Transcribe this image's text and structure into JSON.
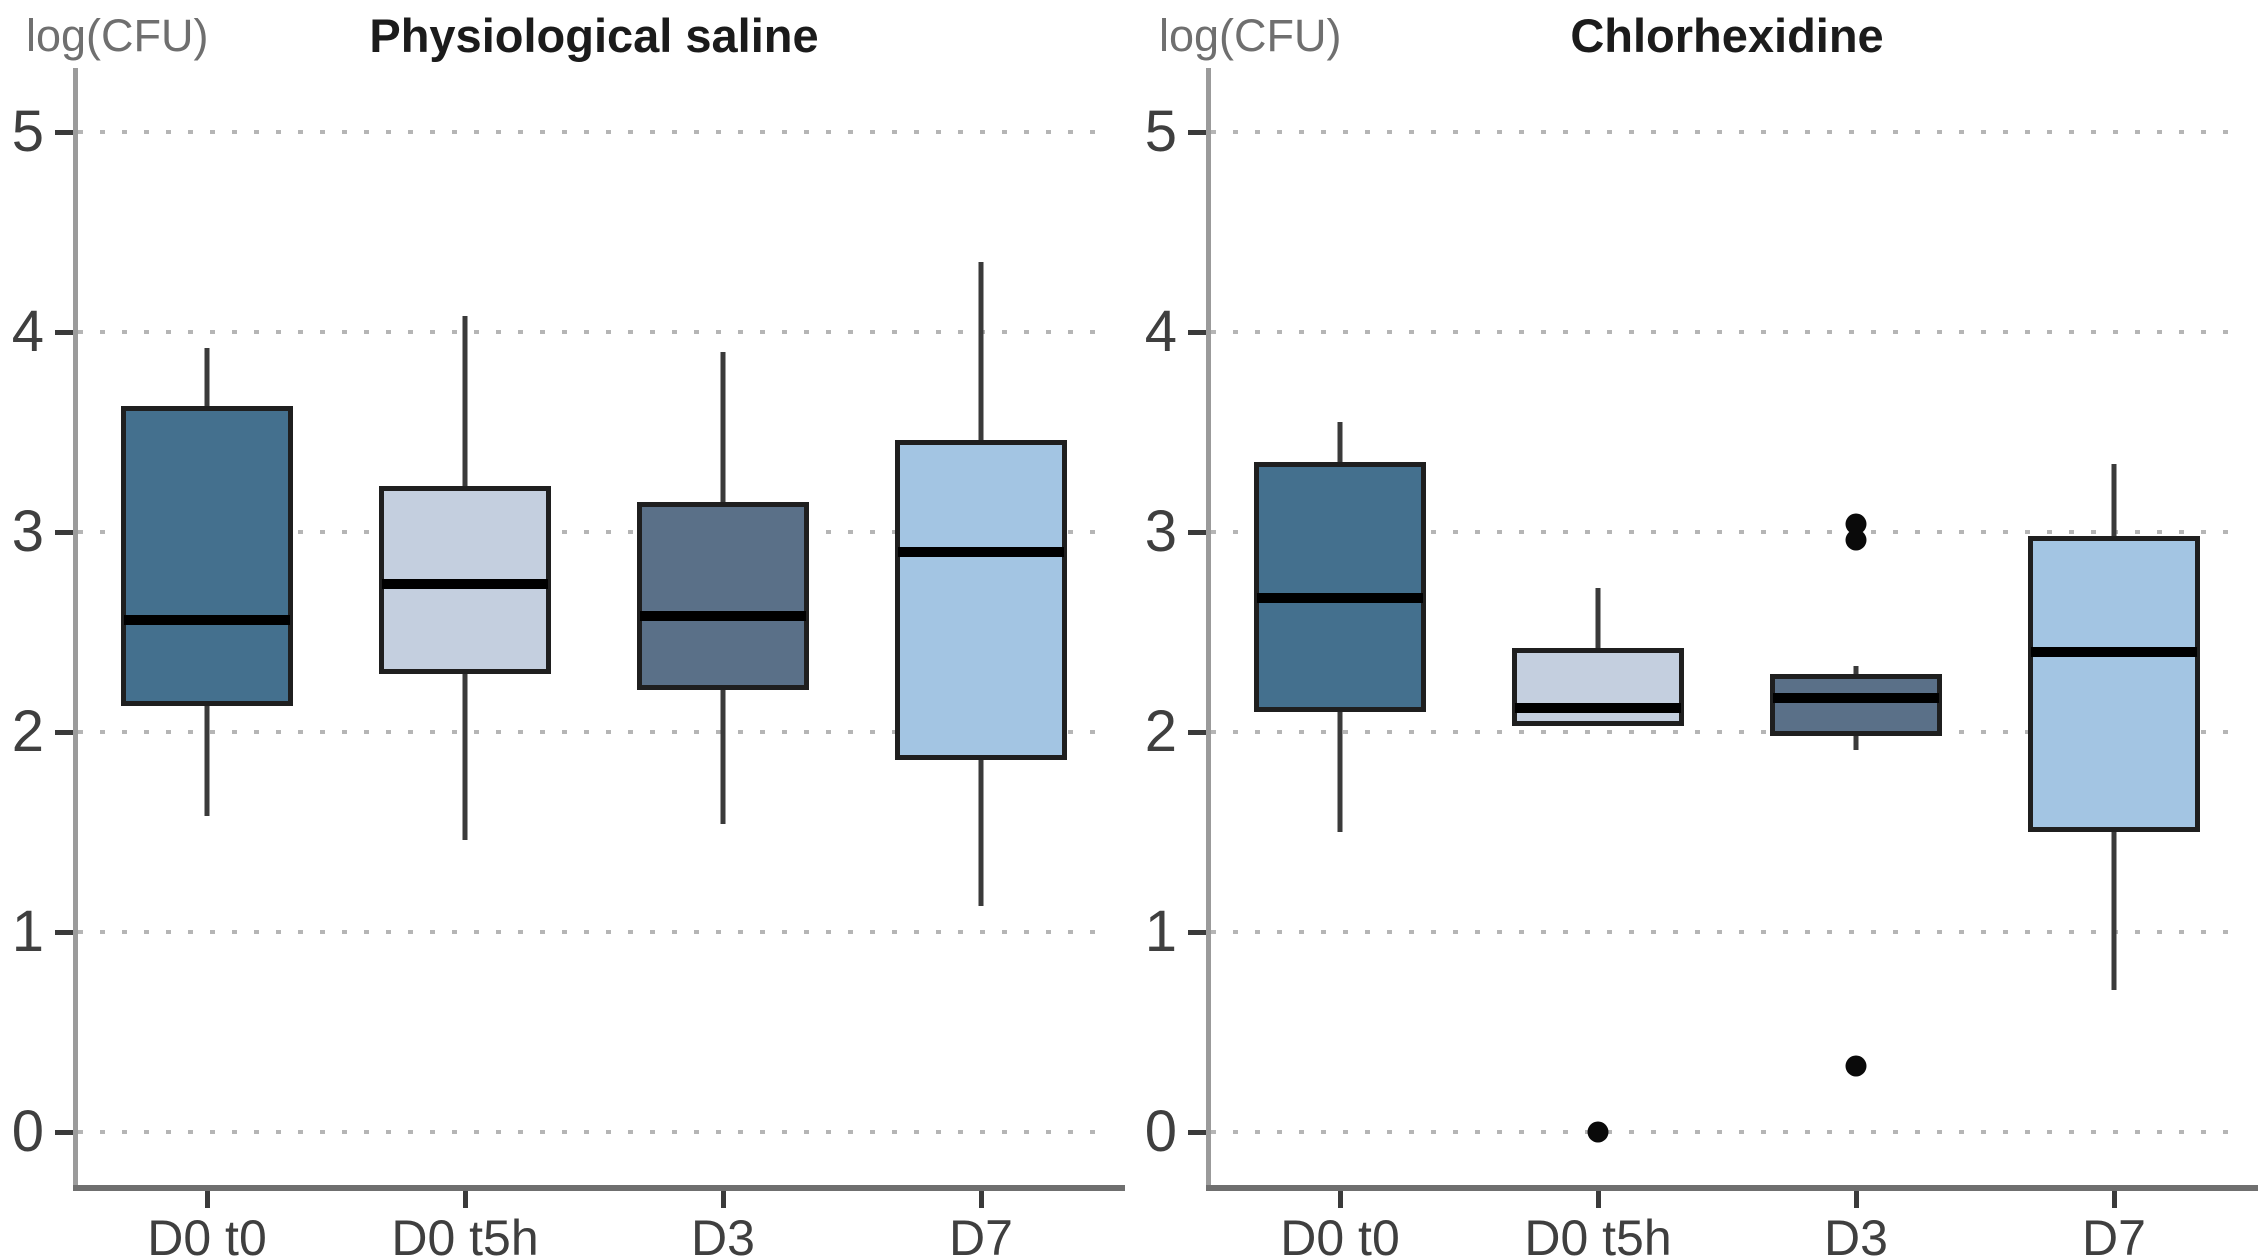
{
  "chart_data": [
    {
      "type": "boxplot",
      "title": "Physiological saline",
      "ylabel": "log(CFU)",
      "xlabel": "",
      "categories": [
        "D0 t0",
        "D0 t5h",
        "D3",
        "D7"
      ],
      "y_ticks": [
        0,
        1,
        2,
        3,
        4,
        5
      ],
      "ylim": [
        -0.3,
        5.4
      ],
      "grid": "horizontal-dotted",
      "legend": "none",
      "boxes": [
        {
          "category": "D0 t0",
          "min": 1.58,
          "q1": 2.13,
          "median": 2.56,
          "q3": 3.63,
          "max": 3.92,
          "outliers": [],
          "fill": "#44708E"
        },
        {
          "category": "D0 t5h",
          "min": 1.46,
          "q1": 2.29,
          "median": 2.74,
          "q3": 3.23,
          "max": 4.08,
          "outliers": [],
          "fill": "#C4CFDF"
        },
        {
          "category": "D3",
          "min": 1.54,
          "q1": 2.21,
          "median": 2.58,
          "q3": 3.15,
          "max": 3.9,
          "outliers": [],
          "fill": "#5A7088"
        },
        {
          "category": "D7",
          "min": 1.13,
          "q1": 1.86,
          "median": 2.9,
          "q3": 3.46,
          "max": 4.35,
          "outliers": [],
          "fill": "#A3C5E3"
        }
      ]
    },
    {
      "type": "boxplot",
      "title": "Chlorhexidine",
      "ylabel": "log(CFU)",
      "xlabel": "",
      "categories": [
        "D0 t0",
        "D0 t5h",
        "D3",
        "D7"
      ],
      "y_ticks": [
        0,
        1,
        2,
        3,
        4,
        5
      ],
      "ylim": [
        -0.3,
        5.4
      ],
      "grid": "horizontal-dotted",
      "legend": "none",
      "boxes": [
        {
          "category": "D0 t0",
          "min": 1.5,
          "q1": 2.1,
          "median": 2.67,
          "q3": 3.35,
          "max": 3.55,
          "outliers": [],
          "fill": "#44708E"
        },
        {
          "category": "D0 t5h",
          "min": 2.03,
          "q1": 2.03,
          "median": 2.12,
          "q3": 2.42,
          "max": 2.72,
          "outliers": [
            0.0
          ],
          "fill": "#C4CFDF"
        },
        {
          "category": "D3",
          "min": 1.91,
          "q1": 1.98,
          "median": 2.17,
          "q3": 2.29,
          "max": 2.33,
          "outliers": [
            3.04,
            2.96,
            0.33
          ],
          "fill": "#5A7088"
        },
        {
          "category": "D7",
          "min": 0.71,
          "q1": 1.5,
          "median": 2.4,
          "q3": 2.98,
          "max": 3.34,
          "outliers": [],
          "fill": "#A3C5E3"
        }
      ]
    }
  ],
  "style_colors": {
    "grid_dot": "#b5b5b5",
    "y_axis_line": "#9b9b9b",
    "x_axis_line": "#6f6f6f",
    "tick_mark": "#3a3a3a",
    "tick_label": "#3f3f3f",
    "title_text": "#1b1b1b",
    "axis_unit_label": "#6f6f6f",
    "box_border": "#1f1f1f",
    "median_line": "#000000",
    "outlier_dot": "#0a0a0a"
  }
}
